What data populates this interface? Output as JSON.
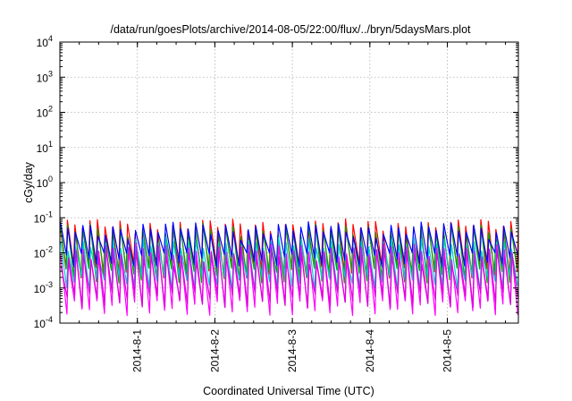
{
  "chart_data": {
    "type": "line",
    "title": "/data/run/goesPlots/archive/2014-08-05/22:00/flux/../bryn/5daysMars.plot",
    "xlabel": "Coordinated Universal Time (UTC)",
    "ylabel": "cGy/day",
    "yscale": "log",
    "ylim": [
      0.0001,
      10000
    ],
    "y_ticks": [
      {
        "base": "10",
        "exp": "-4",
        "value": 0.0001
      },
      {
        "base": "10",
        "exp": "-3",
        "value": 0.001
      },
      {
        "base": "10",
        "exp": "-2",
        "value": 0.01
      },
      {
        "base": "10",
        "exp": "-1",
        "value": 0.1
      },
      {
        "base": "10",
        "exp": "0",
        "value": 1
      },
      {
        "base": "10",
        "exp": "1",
        "value": 10
      },
      {
        "base": "10",
        "exp": "2",
        "value": 100
      },
      {
        "base": "10",
        "exp": "3",
        "value": 1000
      },
      {
        "base": "10",
        "exp": "4",
        "value": 10000
      }
    ],
    "xlim": [
      "2014-07-31T00:00",
      "2014-08-05T22:00"
    ],
    "x_ticks": [
      "2014-8-1",
      "2014-8-2",
      "2014-8-3",
      "2014-8-4",
      "2014-8-5"
    ],
    "grid": true,
    "legend": "none",
    "cycles": 61,
    "series": [
      {
        "color": "#ff0000",
        "peak": 0.06,
        "trough": 0.0035
      },
      {
        "color": "#00aa00",
        "peak": 0.045,
        "trough": 0.0025
      },
      {
        "color": "#0000ff",
        "peak": 0.05,
        "trough": 0.007
      },
      {
        "color": "#00cccc",
        "peak": 0.018,
        "trough": 0.0015
      },
      {
        "color": "#ff00ff",
        "peak": 0.012,
        "trough": 0.0003
      },
      {
        "color": "#dd00dd",
        "peak": 0.009,
        "trough": 0.0005
      }
    ]
  }
}
